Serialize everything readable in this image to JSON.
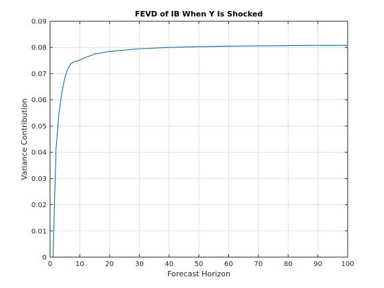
{
  "chart_data": {
    "type": "line",
    "title": "FEVD of IB When Y Is Shocked",
    "xlabel": "Forecast Horizon",
    "ylabel": "Variance Contribution",
    "xlim": [
      0,
      100
    ],
    "ylim": [
      0,
      0.09
    ],
    "xticks": [
      "0",
      "10",
      "20",
      "30",
      "40",
      "50",
      "60",
      "70",
      "80",
      "90",
      "100"
    ],
    "yticks": [
      "0",
      "0.01",
      "0.02",
      "0.03",
      "0.04",
      "0.05",
      "0.06",
      "0.07",
      "0.08",
      "0.09"
    ],
    "grid": true,
    "color": "#0072bd",
    "series": [
      {
        "x": [
          1,
          2,
          3,
          4,
          5,
          6,
          7,
          8,
          9,
          10,
          12,
          15,
          20,
          25,
          30,
          40,
          50,
          60,
          70,
          80,
          90,
          100
        ],
        "y": [
          0.0,
          0.041,
          0.055,
          0.063,
          0.0685,
          0.072,
          0.0738,
          0.0745,
          0.0748,
          0.0752,
          0.0762,
          0.0775,
          0.0785,
          0.079,
          0.0795,
          0.08,
          0.0803,
          0.0805,
          0.0806,
          0.0807,
          0.0808,
          0.0808
        ]
      }
    ]
  }
}
